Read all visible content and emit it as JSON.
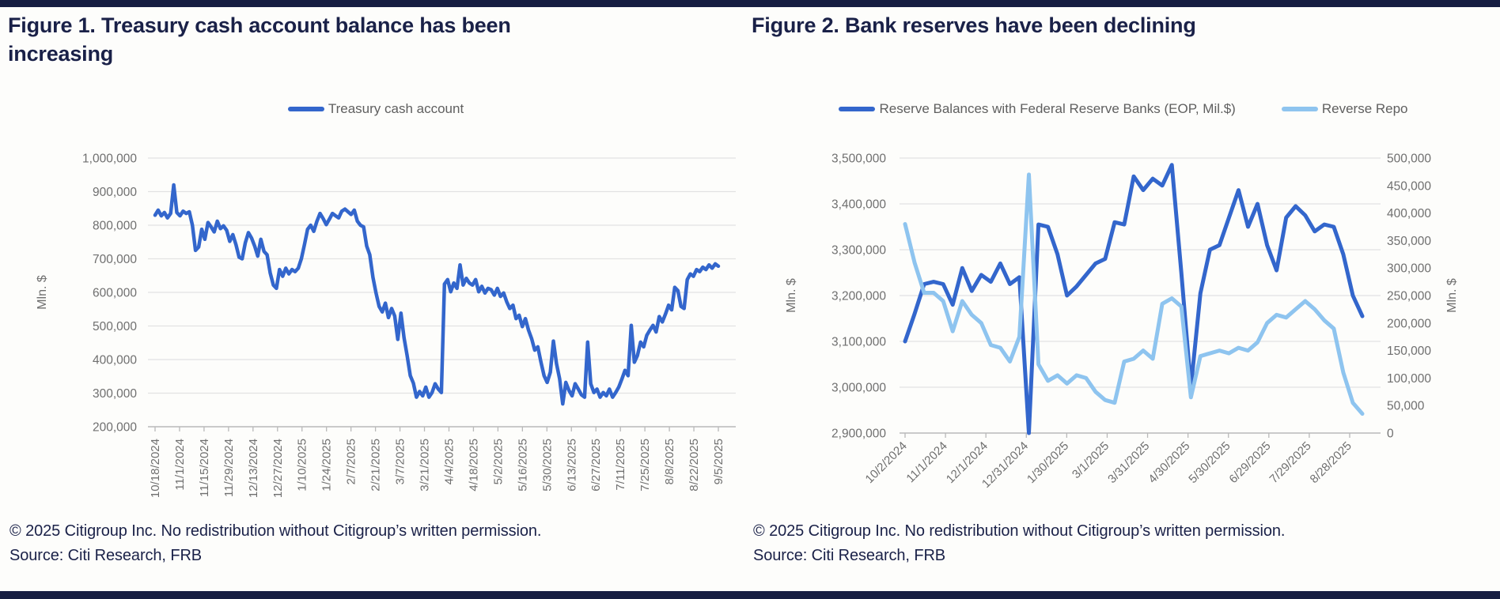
{
  "page": {
    "bar_color": "#171E42",
    "title_color": "#1A2148",
    "background": "#FDFDFB",
    "axis_text_color": "#6F6F6F",
    "gridline_color": "#E2E2E2"
  },
  "footers": {
    "copyright": "© 2025 Citigroup Inc. No redistribution without Citigroup’s written permission.",
    "source": "Source: Citi Research, FRB"
  },
  "chart_data": [
    {
      "type": "line",
      "title": "Figure 1. Treasury cash account balance has been increasing",
      "xlabel": "",
      "ylabel": "Mln. $",
      "ylim": [
        200000,
        1000000
      ],
      "y_ticks": [
        1000000,
        900000,
        800000,
        700000,
        600000,
        500000,
        400000,
        300000,
        200000
      ],
      "x_tick_labels": [
        "10/18/2024",
        "11/1/2024",
        "11/15/2024",
        "11/29/2024",
        "12/13/2024",
        "12/27/2024",
        "1/10/2025",
        "1/24/2025",
        "2/7/2025",
        "2/21/2025",
        "3/7/2025",
        "3/21/2025",
        "4/4/2025",
        "4/18/2025",
        "5/2/2025",
        "5/16/2025",
        "5/30/2025",
        "6/13/2025",
        "6/27/2025",
        "7/11/2025",
        "7/25/2025",
        "8/8/2025",
        "8/22/2025",
        "9/5/2025"
      ],
      "x_tick_rotation": 90,
      "grid": true,
      "legend_position": "top",
      "series": [
        {
          "name": "Treasury cash account",
          "color": "#3366CC",
          "axis": "left",
          "values": [
            830000,
            845000,
            828000,
            838000,
            822000,
            835000,
            920000,
            838000,
            828000,
            842000,
            835000,
            840000,
            800000,
            725000,
            735000,
            788000,
            758000,
            808000,
            795000,
            780000,
            812000,
            790000,
            798000,
            785000,
            752000,
            772000,
            742000,
            705000,
            700000,
            748000,
            778000,
            762000,
            738000,
            708000,
            758000,
            722000,
            712000,
            658000,
            622000,
            612000,
            668000,
            648000,
            672000,
            655000,
            668000,
            662000,
            672000,
            700000,
            742000,
            788000,
            800000,
            782000,
            812000,
            835000,
            820000,
            802000,
            818000,
            835000,
            828000,
            822000,
            842000,
            848000,
            840000,
            832000,
            845000,
            812000,
            800000,
            795000,
            738000,
            712000,
            645000,
            598000,
            558000,
            542000,
            568000,
            525000,
            552000,
            530000,
            460000,
            538000,
            465000,
            412000,
            352000,
            330000,
            288000,
            305000,
            292000,
            318000,
            288000,
            302000,
            328000,
            312000,
            302000,
            625000,
            638000,
            602000,
            628000,
            612000,
            682000,
            622000,
            642000,
            628000,
            622000,
            638000,
            602000,
            618000,
            598000,
            612000,
            608000,
            592000,
            612000,
            588000,
            598000,
            572000,
            552000,
            562000,
            522000,
            532000,
            498000,
            522000,
            488000,
            462000,
            428000,
            438000,
            392000,
            352000,
            332000,
            362000,
            455000,
            388000,
            342000,
            268000,
            332000,
            308000,
            292000,
            328000,
            312000,
            295000,
            288000,
            452000,
            328000,
            302000,
            312000,
            288000,
            302000,
            292000,
            312000,
            288000,
            302000,
            318000,
            342000,
            368000,
            352000,
            502000,
            392000,
            412000,
            452000,
            438000,
            472000,
            488000,
            502000,
            482000,
            528000,
            512000,
            535000,
            562000,
            548000,
            615000,
            605000,
            558000,
            552000,
            638000,
            655000,
            648000,
            668000,
            662000,
            675000,
            668000,
            682000,
            672000,
            685000,
            678000
          ]
        }
      ]
    },
    {
      "type": "line",
      "title": "Figure 2. Bank reserves have been declining",
      "xlabel": "",
      "ylabel_left": "Mln. $",
      "ylabel_right": "Mln. $",
      "ylim_left": [
        2900000,
        3500000
      ],
      "ylim_right": [
        0,
        500000
      ],
      "y_ticks_left": [
        3500000,
        3400000,
        3300000,
        3200000,
        3100000,
        3000000,
        2900000
      ],
      "y_ticks_right": [
        500000,
        450000,
        400000,
        350000,
        300000,
        250000,
        200000,
        150000,
        100000,
        50000,
        0
      ],
      "x_tick_labels": [
        "10/2/2024",
        "11/1/2024",
        "12/1/2024",
        "12/31/2024",
        "1/30/2025",
        "3/1/2025",
        "3/31/2025",
        "4/30/2025",
        "5/30/2025",
        "6/29/2025",
        "7/29/2025",
        "8/28/2025"
      ],
      "x_tick_rotation": 45,
      "grid": true,
      "legend_position": "top",
      "series": [
        {
          "name": "Reserve Balances with Federal Reserve Banks (EOP, Mil.$)",
          "color": "#3366CC",
          "axis": "left",
          "values": [
            3100000,
            3160000,
            3225000,
            3230000,
            3225000,
            3180000,
            3260000,
            3210000,
            3245000,
            3230000,
            3270000,
            3225000,
            3240000,
            2900000,
            3355000,
            3350000,
            3290000,
            3200000,
            3220000,
            3245000,
            3270000,
            3280000,
            3360000,
            3355000,
            3460000,
            3430000,
            3455000,
            3440000,
            3485000,
            3250000,
            3000000,
            3205000,
            3300000,
            3310000,
            3370000,
            3430000,
            3350000,
            3400000,
            3310000,
            3255000,
            3370000,
            3395000,
            3375000,
            3340000,
            3355000,
            3350000,
            3290000,
            3200000,
            3155000
          ]
        },
        {
          "name": "Reverse Repo",
          "color": "#8EC4EF",
          "axis": "right",
          "values": [
            380000,
            310000,
            255000,
            255000,
            240000,
            185000,
            240000,
            215000,
            200000,
            160000,
            155000,
            130000,
            175000,
            470000,
            125000,
            95000,
            105000,
            90000,
            105000,
            100000,
            75000,
            60000,
            55000,
            130000,
            135000,
            150000,
            135000,
            235000,
            245000,
            230000,
            65000,
            140000,
            145000,
            150000,
            145000,
            155000,
            150000,
            165000,
            200000,
            215000,
            210000,
            225000,
            240000,
            225000,
            205000,
            190000,
            110000,
            55000,
            35000
          ]
        }
      ]
    }
  ]
}
